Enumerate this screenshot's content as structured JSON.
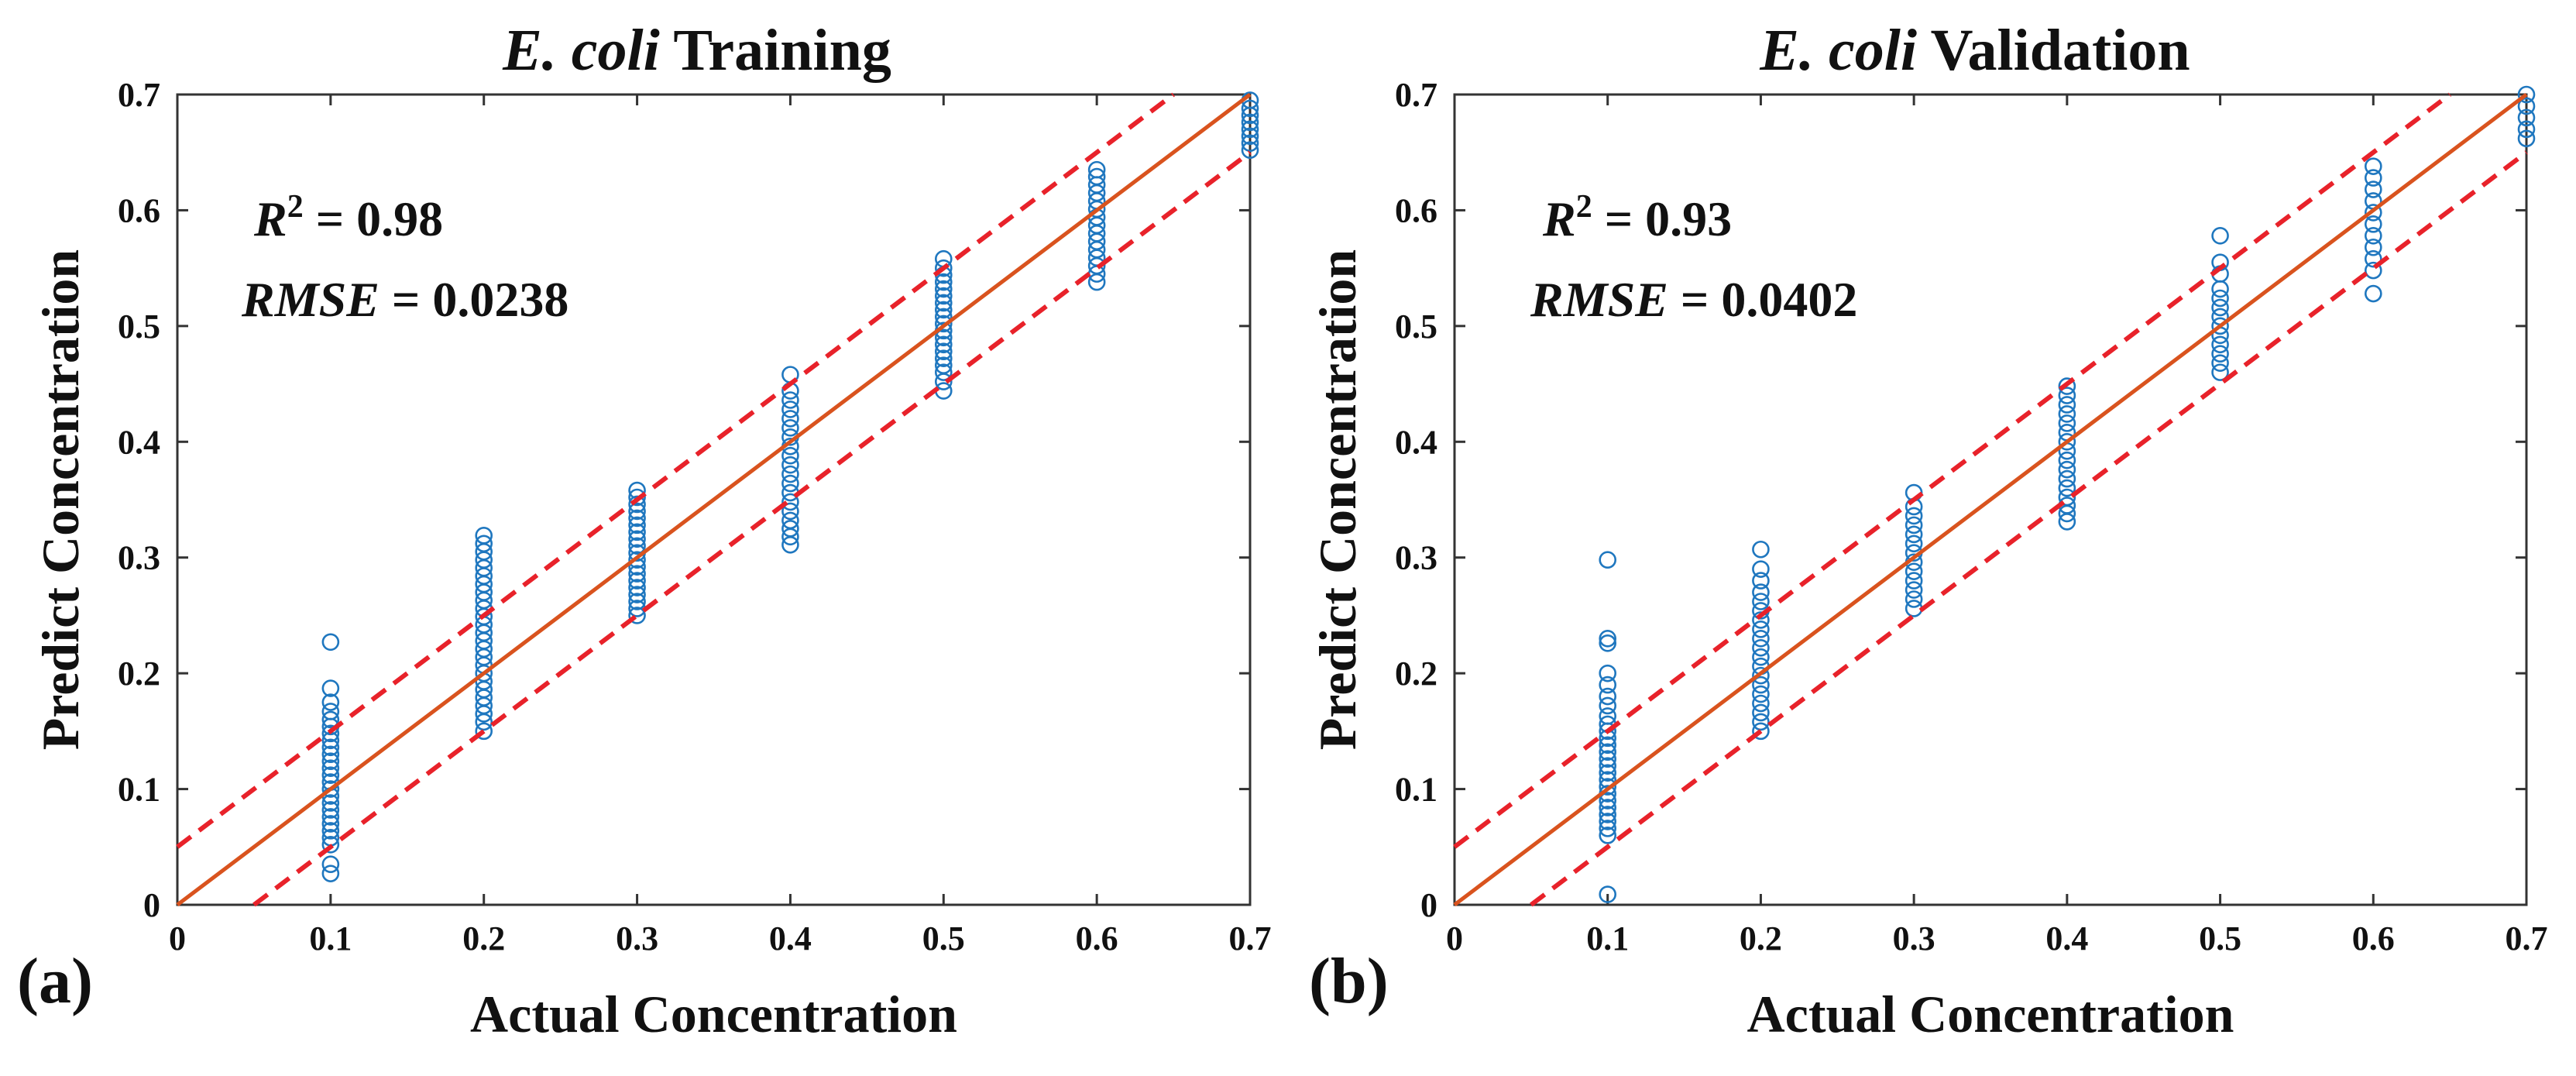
{
  "colors": {
    "marker": "#1f77bf",
    "fit_line": "#d9531e",
    "bounds": "#e8222a",
    "axis": "#333333"
  },
  "chart_data": [
    {
      "type": "scatter",
      "panel_label": "(a)",
      "title": {
        "italic": "E. coli",
        "rest": " Training"
      },
      "xlabel": "Actual Concentration",
      "ylabel": "Predict Concentration",
      "xlim": [
        0,
        0.7
      ],
      "ylim": [
        0,
        0.7
      ],
      "x_ticks": [
        "0",
        "0.1",
        "0.2",
        "0.3",
        "0.4",
        "0.5",
        "0.6",
        "0.7"
      ],
      "y_ticks": [
        "0",
        "0.1",
        "0.2",
        "0.3",
        "0.4",
        "0.5",
        "0.6",
        "0.7"
      ],
      "r2": {
        "symbol": "R",
        "power": "2",
        "equals": " = ",
        "value": "0.98"
      },
      "rmse": {
        "symbol": "RMSE",
        "equals": " = ",
        "value": "0.0238"
      },
      "fit_line": {
        "from": [
          0,
          0
        ],
        "to": [
          0.7,
          0.7
        ]
      },
      "bounds": [
        {
          "from": [
            0,
            0.05
          ],
          "to": [
            0.65,
            0.7
          ]
        },
        {
          "from": [
            0.05,
            0
          ],
          "to": [
            0.7,
            0.65
          ]
        }
      ],
      "series": [
        {
          "x": 0.1,
          "y": [
            0.027,
            0.035,
            0.052,
            0.058,
            0.064,
            0.07,
            0.076,
            0.082,
            0.088,
            0.094,
            0.1,
            0.106,
            0.112,
            0.118,
            0.124,
            0.13,
            0.136,
            0.142,
            0.148,
            0.154,
            0.16,
            0.167,
            0.175,
            0.187,
            0.227
          ]
        },
        {
          "x": 0.2,
          "y": [
            0.15,
            0.158,
            0.165,
            0.172,
            0.179,
            0.186,
            0.193,
            0.2,
            0.207,
            0.214,
            0.221,
            0.228,
            0.235,
            0.242,
            0.249,
            0.256,
            0.263,
            0.27,
            0.277,
            0.284,
            0.291,
            0.298,
            0.305,
            0.312,
            0.319
          ]
        },
        {
          "x": 0.3,
          "y": [
            0.25,
            0.256,
            0.262,
            0.268,
            0.274,
            0.28,
            0.286,
            0.292,
            0.298,
            0.304,
            0.31,
            0.316,
            0.322,
            0.328,
            0.334,
            0.34,
            0.346,
            0.352,
            0.358
          ]
        },
        {
          "x": 0.4,
          "y": [
            0.311,
            0.318,
            0.325,
            0.332,
            0.34,
            0.348,
            0.356,
            0.364,
            0.372,
            0.38,
            0.388,
            0.396,
            0.404,
            0.412,
            0.42,
            0.428,
            0.436,
            0.444,
            0.458
          ]
        },
        {
          "x": 0.5,
          "y": [
            0.444,
            0.452,
            0.46,
            0.466,
            0.472,
            0.478,
            0.484,
            0.49,
            0.496,
            0.502,
            0.508,
            0.514,
            0.52,
            0.526,
            0.532,
            0.538,
            0.544,
            0.55,
            0.558
          ]
        },
        {
          "x": 0.6,
          "y": [
            0.538,
            0.545,
            0.552,
            0.559,
            0.566,
            0.573,
            0.58,
            0.587,
            0.594,
            0.601,
            0.608,
            0.615,
            0.622,
            0.629,
            0.635
          ]
        },
        {
          "x": 0.7,
          "y": [
            0.652,
            0.658,
            0.664,
            0.67,
            0.676,
            0.682,
            0.688,
            0.695
          ]
        }
      ]
    },
    {
      "type": "scatter",
      "panel_label": "(b)",
      "title": {
        "italic": "E. coli",
        "rest": " Validation"
      },
      "xlabel": "Actual Concentration",
      "ylabel": "Predict Concentration",
      "xlim": [
        0,
        0.7
      ],
      "ylim": [
        0,
        0.7
      ],
      "x_ticks": [
        "0",
        "0.1",
        "0.2",
        "0.3",
        "0.4",
        "0.5",
        "0.6",
        "0.7"
      ],
      "y_ticks": [
        "0",
        "0.1",
        "0.2",
        "0.3",
        "0.4",
        "0.5",
        "0.6",
        "0.7"
      ],
      "r2": {
        "symbol": "R",
        "power": "2",
        "equals": " = ",
        "value": "0.93"
      },
      "rmse": {
        "symbol": "RMSE",
        "equals": " = ",
        "value": "0.0402"
      },
      "fit_line": {
        "from": [
          0,
          0
        ],
        "to": [
          0.7,
          0.7
        ]
      },
      "bounds": [
        {
          "from": [
            0,
            0.05
          ],
          "to": [
            0.65,
            0.7
          ]
        },
        {
          "from": [
            0.05,
            0
          ],
          "to": [
            0.7,
            0.65
          ]
        }
      ],
      "series": [
        {
          "x": 0.1,
          "y": [
            0.009,
            0.06,
            0.066,
            0.072,
            0.078,
            0.084,
            0.09,
            0.096,
            0.102,
            0.108,
            0.114,
            0.12,
            0.126,
            0.132,
            0.138,
            0.144,
            0.15,
            0.156,
            0.163,
            0.172,
            0.18,
            0.19,
            0.2,
            0.226,
            0.23,
            0.298
          ]
        },
        {
          "x": 0.2,
          "y": [
            0.15,
            0.158,
            0.166,
            0.174,
            0.182,
            0.19,
            0.198,
            0.206,
            0.214,
            0.222,
            0.23,
            0.238,
            0.246,
            0.254,
            0.262,
            0.27,
            0.28,
            0.29,
            0.307
          ]
        },
        {
          "x": 0.3,
          "y": [
            0.256,
            0.264,
            0.272,
            0.28,
            0.288,
            0.296,
            0.304,
            0.312,
            0.32,
            0.328,
            0.336,
            0.344,
            0.356
          ]
        },
        {
          "x": 0.4,
          "y": [
            0.331,
            0.338,
            0.345,
            0.352,
            0.36,
            0.368,
            0.376,
            0.384,
            0.392,
            0.4,
            0.408,
            0.416,
            0.424,
            0.432,
            0.44,
            0.448
          ]
        },
        {
          "x": 0.5,
          "y": [
            0.46,
            0.468,
            0.476,
            0.484,
            0.492,
            0.5,
            0.508,
            0.516,
            0.524,
            0.532,
            0.545,
            0.555,
            0.578
          ]
        },
        {
          "x": 0.6,
          "y": [
            0.528,
            0.548,
            0.558,
            0.568,
            0.578,
            0.588,
            0.598,
            0.608,
            0.618,
            0.628,
            0.638
          ]
        },
        {
          "x": 0.7,
          "y": [
            0.662,
            0.67,
            0.68,
            0.69,
            0.7
          ]
        }
      ]
    }
  ]
}
